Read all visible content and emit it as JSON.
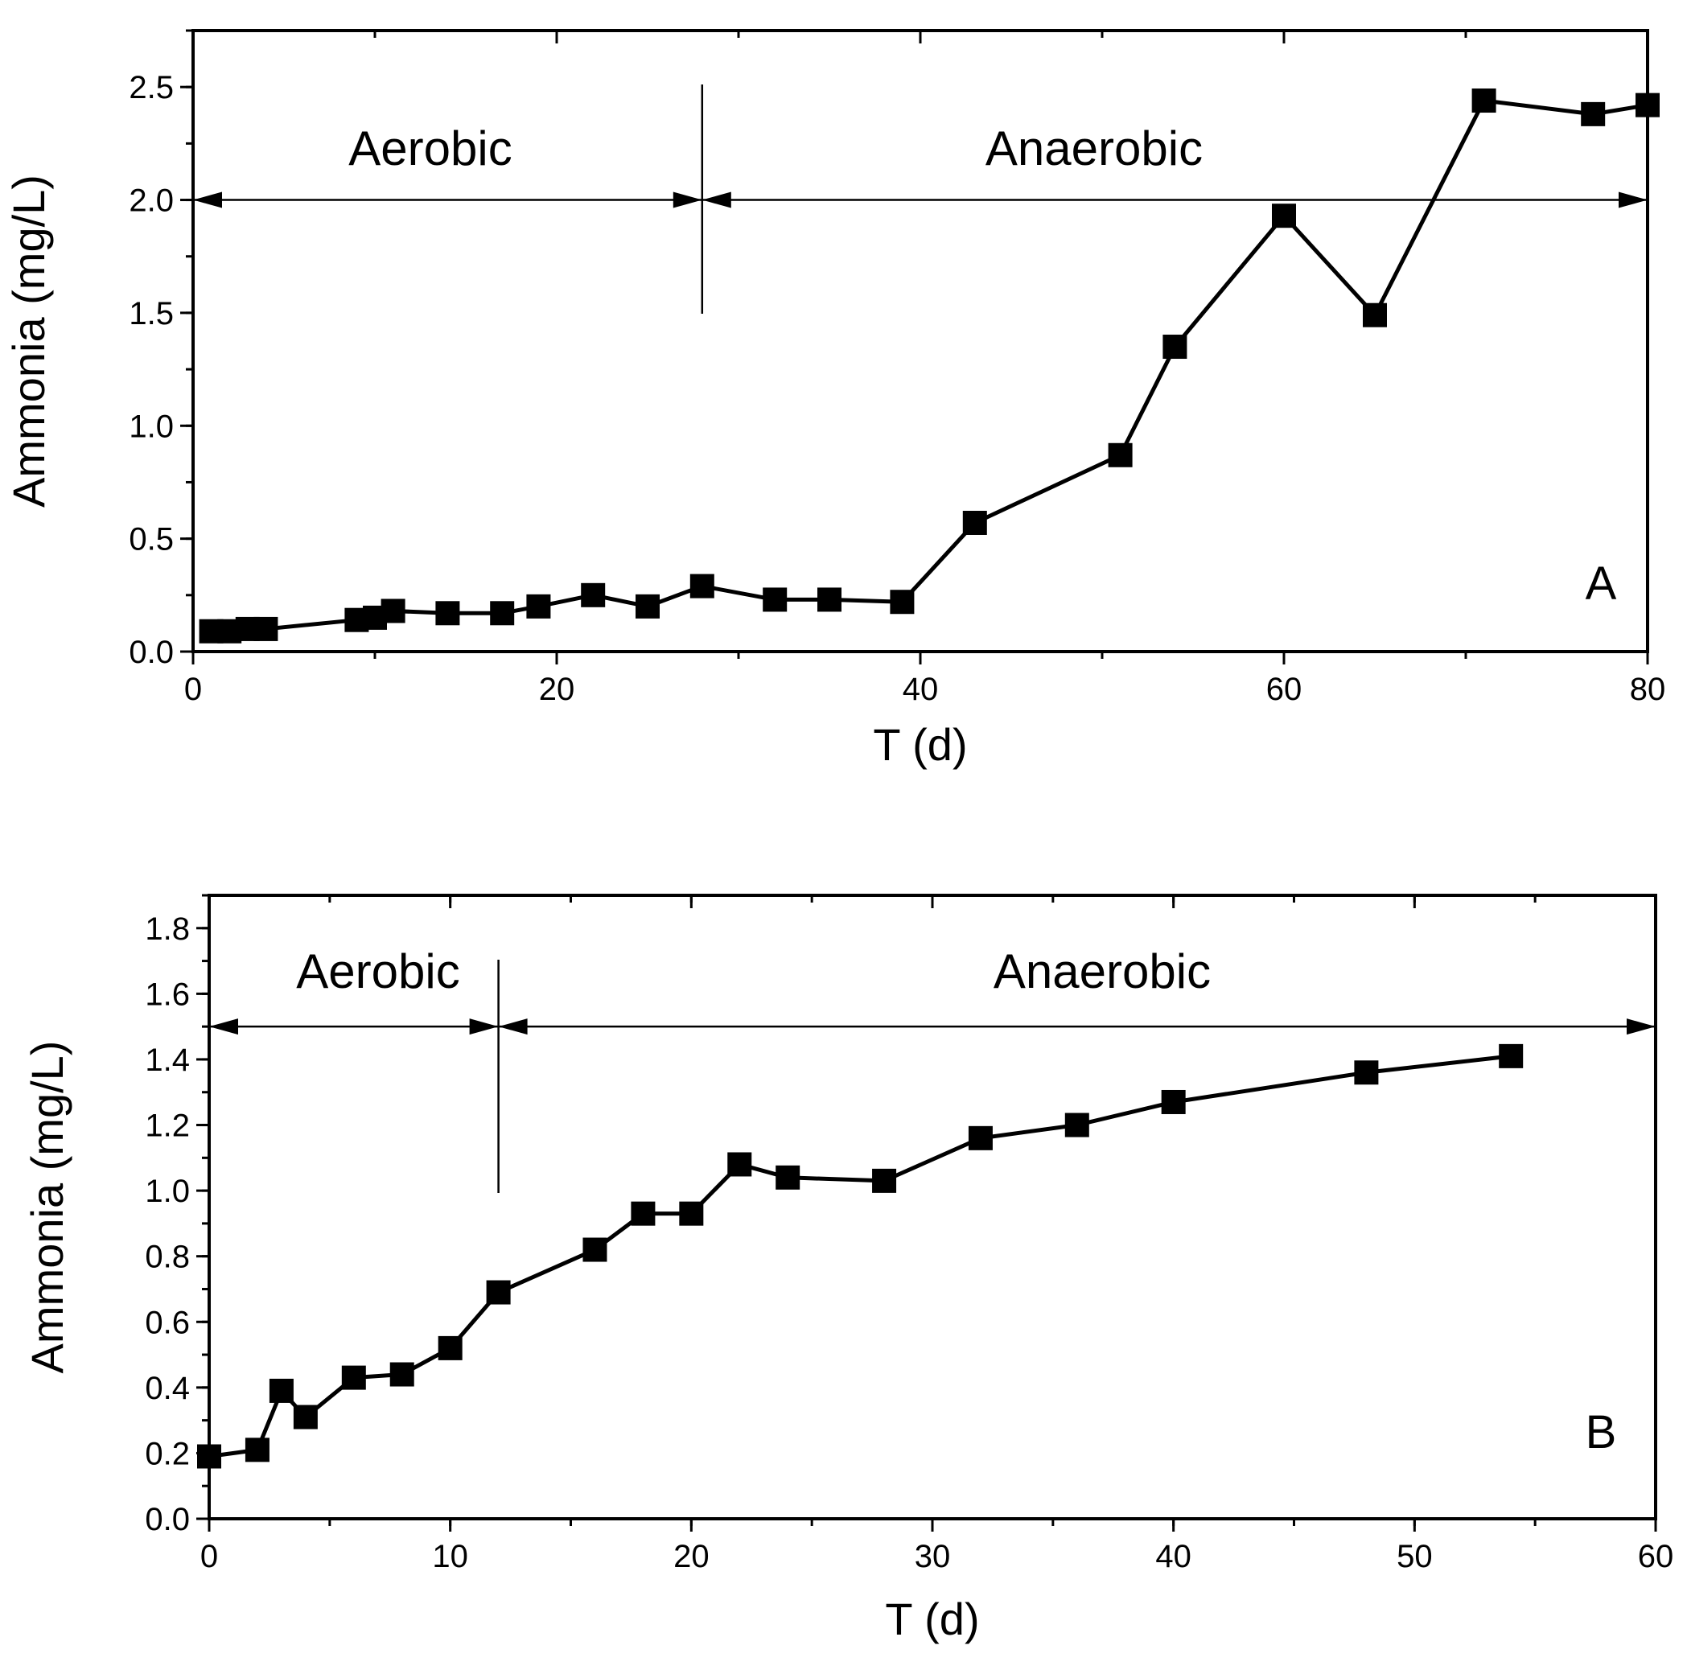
{
  "chart_data": [
    {
      "type": "line",
      "panel_label": "A",
      "xlabel": "T (d)",
      "ylabel": "Ammonia (mg/L)",
      "xlim": [
        0,
        80
      ],
      "ylim": [
        0,
        2.75
      ],
      "xticks": [
        "0",
        "20",
        "40",
        "60",
        "80"
      ],
      "xtick_values": [
        0,
        20,
        40,
        60,
        80
      ],
      "yticks": [
        "0.0",
        "0.5",
        "1.0",
        "1.5",
        "2.0",
        "2.5"
      ],
      "ytick_values": [
        0,
        0.5,
        1.0,
        1.5,
        2.0,
        2.5
      ],
      "divider_x": 28,
      "phase_arrow_y": 2.0,
      "phases": [
        {
          "label": "Aerobic",
          "from": 0,
          "to": 28
        },
        {
          "label": "Anaerobic",
          "from": 28,
          "to": 80
        }
      ],
      "series": [
        {
          "name": "Ammonia",
          "x": [
            1,
            2,
            3,
            4,
            9,
            10,
            11,
            14,
            17,
            19,
            22,
            25,
            28,
            32,
            35,
            39,
            43,
            51,
            54,
            60,
            65,
            71,
            77,
            80
          ],
          "y": [
            0.09,
            0.09,
            0.1,
            0.1,
            0.14,
            0.15,
            0.18,
            0.17,
            0.17,
            0.2,
            0.25,
            0.2,
            0.29,
            0.23,
            0.23,
            0.22,
            0.57,
            0.87,
            1.35,
            1.93,
            1.49,
            2.44,
            2.38,
            2.42
          ]
        }
      ]
    },
    {
      "type": "line",
      "panel_label": "B",
      "xlabel": "T (d)",
      "ylabel": "Ammonia (mg/L)",
      "xlim": [
        0,
        60
      ],
      "ylim": [
        0,
        1.9
      ],
      "xticks": [
        "0",
        "10",
        "20",
        "30",
        "40",
        "50",
        "60"
      ],
      "xtick_values": [
        0,
        10,
        20,
        30,
        40,
        50,
        60
      ],
      "yticks": [
        "0.0",
        "0.2",
        "0.4",
        "0.6",
        "0.8",
        "1.0",
        "1.2",
        "1.4",
        "1.6",
        "1.8"
      ],
      "ytick_values": [
        0,
        0.2,
        0.4,
        0.6,
        0.8,
        1.0,
        1.2,
        1.4,
        1.6,
        1.8
      ],
      "divider_x": 12,
      "phase_arrow_y": 1.5,
      "phases": [
        {
          "label": "Aerobic",
          "from": 0,
          "to": 12
        },
        {
          "label": "Anaerobic",
          "from": 12,
          "to": 60
        }
      ],
      "series": [
        {
          "name": "Ammonia",
          "x": [
            0,
            2,
            3,
            4,
            6,
            8,
            10,
            12,
            16,
            18,
            20,
            22,
            24,
            28,
            32,
            36,
            40,
            48,
            54
          ],
          "y": [
            0.19,
            0.21,
            0.39,
            0.31,
            0.43,
            0.44,
            0.52,
            0.69,
            0.82,
            0.93,
            0.93,
            1.08,
            1.04,
            1.03,
            1.16,
            1.2,
            1.27,
            1.36,
            1.41
          ]
        }
      ]
    }
  ]
}
